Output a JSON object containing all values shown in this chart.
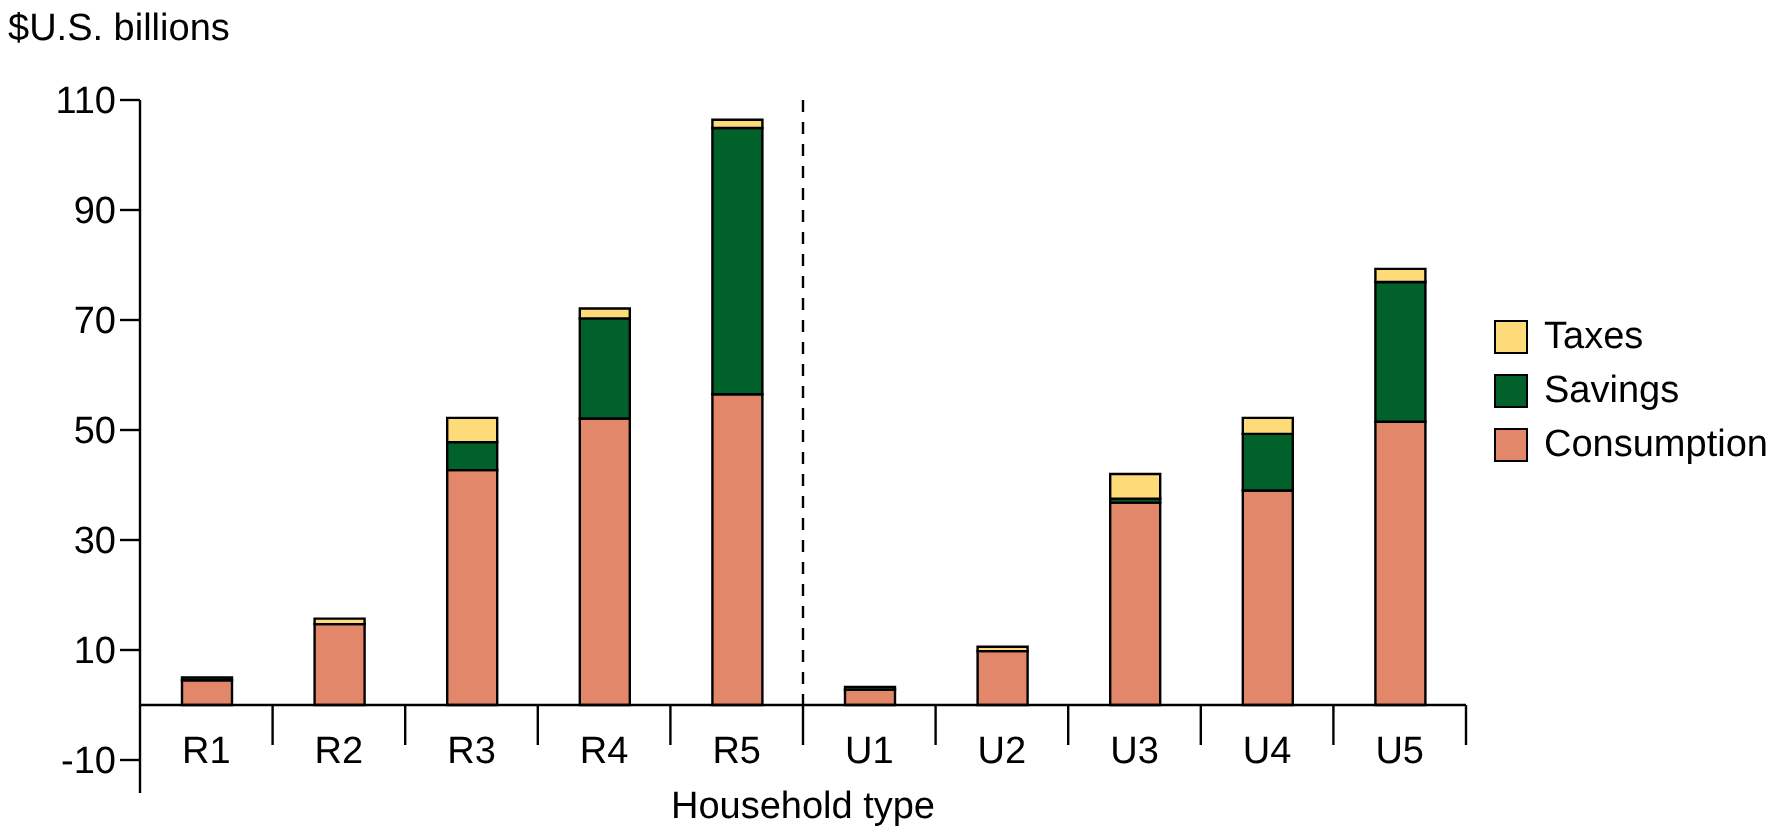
{
  "chart_data": {
    "type": "bar",
    "stacked": true,
    "ylabel": "$U.S. billions",
    "xlabel": "Household type",
    "categories": [
      "R1",
      "R2",
      "R3",
      "R4",
      "R5",
      "U1",
      "U2",
      "U3",
      "U4",
      "U5"
    ],
    "series": [
      {
        "name": "Consumption",
        "color": "#e3876a",
        "values": [
          4.5,
          14.7,
          42.7,
          52.1,
          56.5,
          2.8,
          9.8,
          36.8,
          39,
          51.5
        ]
      },
      {
        "name": "Savings",
        "color": "#00612a",
        "values": [
          0.5,
          0,
          5.1,
          18.2,
          48.4,
          0.5,
          0,
          0.7,
          10.3,
          25.4
        ]
      },
      {
        "name": "Taxes",
        "color": "#fddb78",
        "values": [
          0,
          1,
          4.4,
          1.8,
          1.5,
          0,
          0.8,
          4.5,
          2.9,
          2.4
        ]
      }
    ],
    "ylim": [
      -16,
      110
    ],
    "yticks": [
      -10,
      10,
      30,
      50,
      70,
      90,
      110
    ],
    "grid": false,
    "legend": "right"
  }
}
